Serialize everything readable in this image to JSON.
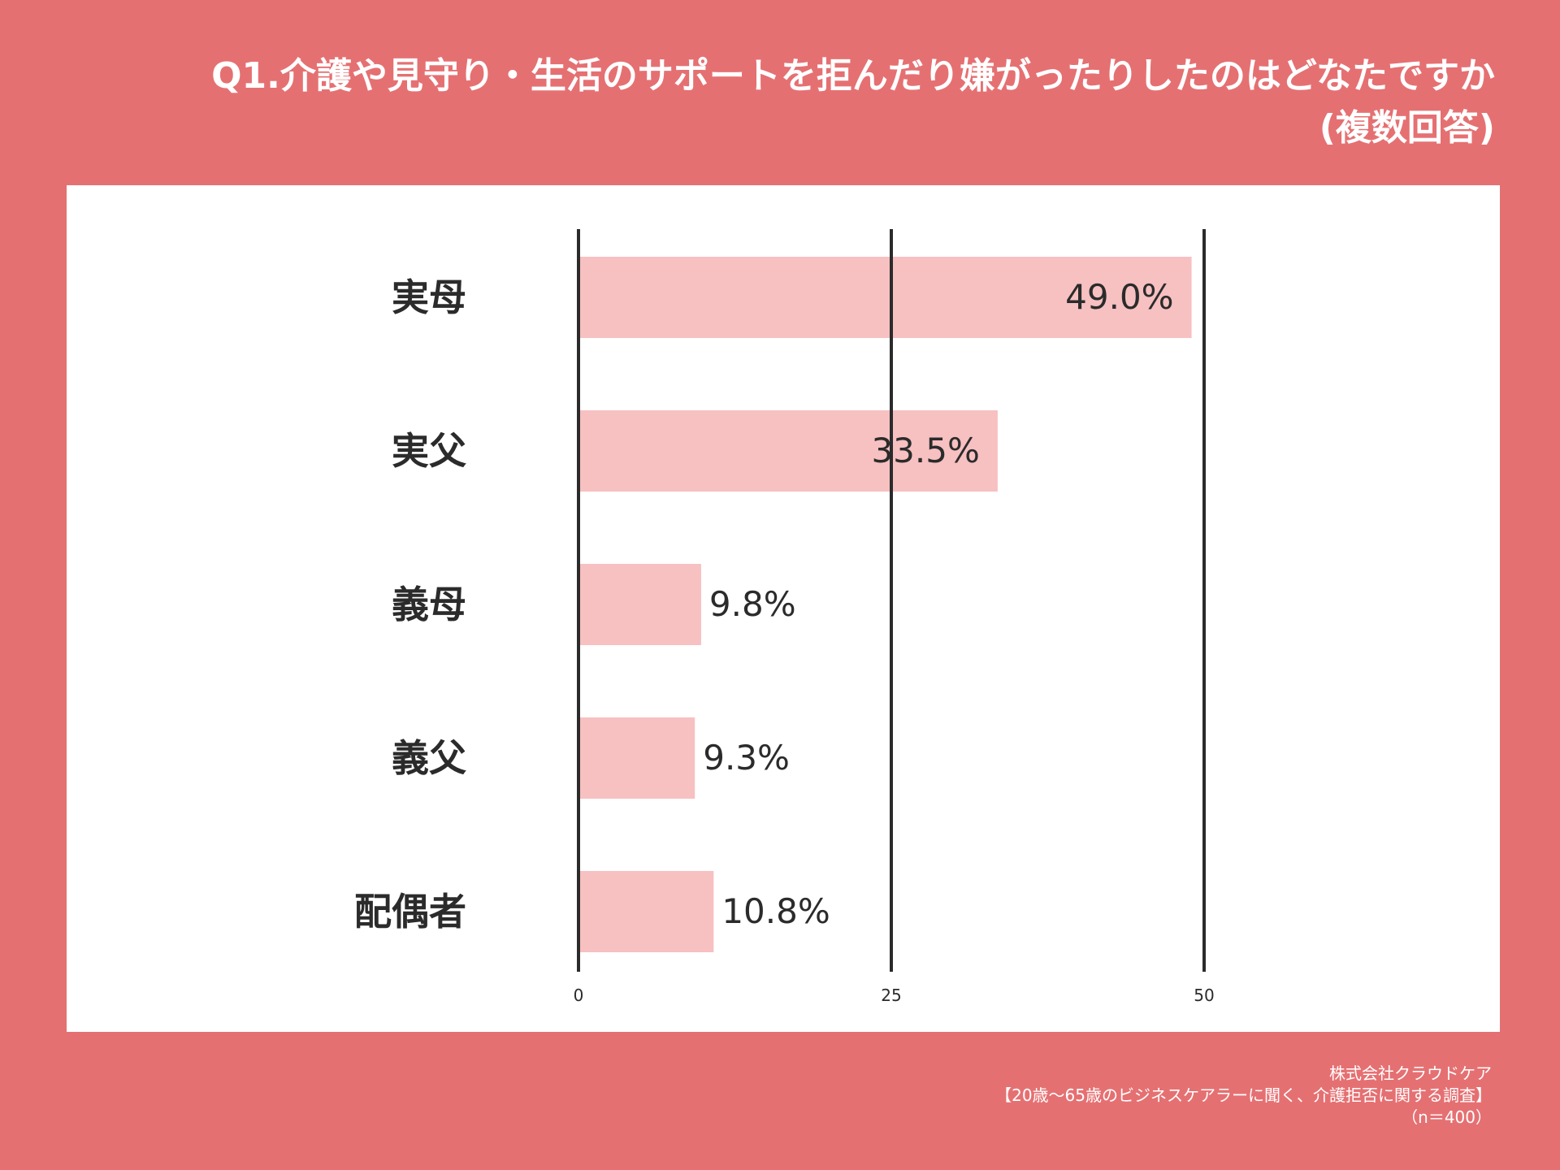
{
  "header": {
    "title_line1": "Q1.介護や見守り・生活のサポートを拒んだり嫌がったりしたのはどなたですか",
    "title_line2": "(複数回答)"
  },
  "footer": {
    "company": "株式会社クラウドケア",
    "survey": "【20歳〜65歳のビジネスケアラーに聞く、介護拒否に関する調査】",
    "sample": "（n＝400）"
  },
  "colors": {
    "background": "#e57072",
    "card": "#ffffff",
    "bar": "#f7c0c1",
    "axis": "#2b2b2b"
  },
  "chart_data": {
    "type": "bar",
    "orientation": "horizontal",
    "categories": [
      "実母",
      "実父",
      "義母",
      "義父",
      "配偶者"
    ],
    "values": [
      49.0,
      33.5,
      9.8,
      9.3,
      10.8
    ],
    "value_labels": [
      "49.0%",
      "33.5%",
      "9.8%",
      "9.3%",
      "10.8%"
    ],
    "xlim": [
      0,
      50
    ],
    "xticks": [
      "0",
      "25",
      "50"
    ],
    "grid": "vertical lines at ticks",
    "legend": "none"
  }
}
